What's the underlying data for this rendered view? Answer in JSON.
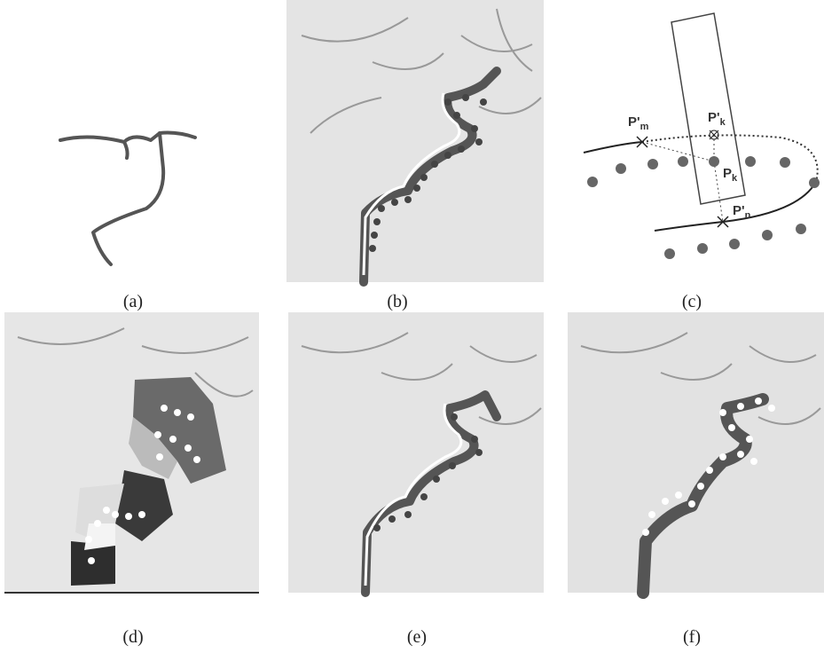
{
  "panels": [
    {
      "label": "(a)"
    },
    {
      "label": "(b)"
    },
    {
      "label": "(c)"
    },
    {
      "label": "(d)"
    },
    {
      "label": "(e)"
    },
    {
      "label": "(f)"
    }
  ],
  "diagram_labels": [
    {
      "base": "P'",
      "sub": "m"
    },
    {
      "base": "P'",
      "sub": "k"
    },
    {
      "base": "P",
      "sub": "k"
    },
    {
      "base": "P'",
      "sub": "n"
    }
  ]
}
